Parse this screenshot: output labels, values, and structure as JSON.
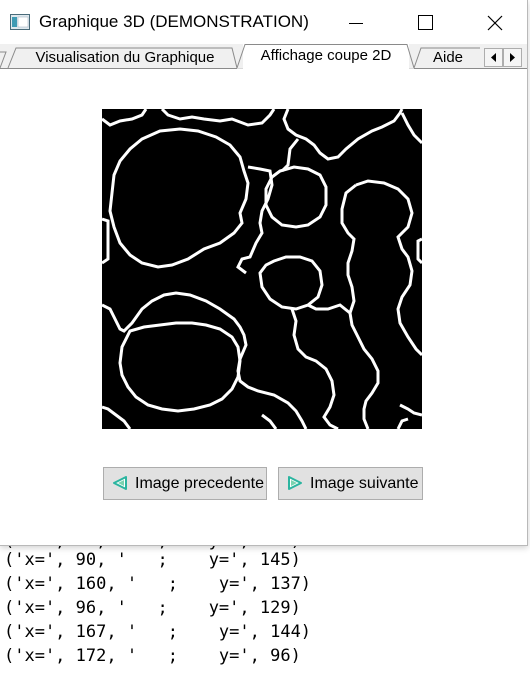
{
  "window": {
    "title": "Graphique 3D (DEMONSTRATION)"
  },
  "tabs": [
    {
      "label": "Visualisation du Graphique",
      "active": false
    },
    {
      "label": "Affichage coupe 2D",
      "active": true
    },
    {
      "label": "Aide",
      "active": false
    }
  ],
  "buttons": {
    "previous": "Image precedente",
    "next": "Image suivante"
  },
  "console": {
    "lines": [
      "('x=', 90, '   ;    y=', 145)",
      "('x=', 160, '   ;    y=', 137)",
      "('x=', 96, '   ;    y=', 129)",
      "('x=', 167, '   ;    y=', 144)",
      "('x=', 172, '   ;    y=', 96)"
    ]
  },
  "icons": {
    "app": "app-window-icon",
    "minimize": "minimize-icon",
    "maximize": "maximize-icon",
    "close": "close-icon",
    "scroll_left": "triangle-left-icon",
    "scroll_right": "triangle-right-icon",
    "previous": "triangle-left-green-icon",
    "next": "triangle-right-green-icon"
  },
  "colors": {
    "image_background": "#000000",
    "image_lines": "#ffffff",
    "icon_green": "#2bb5a0"
  }
}
